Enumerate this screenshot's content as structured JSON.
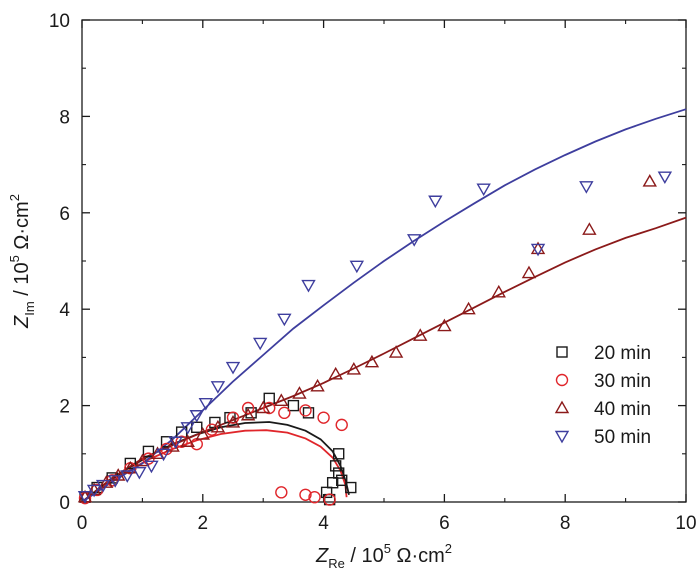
{
  "chart_data": {
    "type": "scatter",
    "xlim": [
      0,
      10
    ],
    "ylim": [
      0,
      10
    ],
    "xticks": [
      0,
      2,
      4,
      6,
      8,
      10
    ],
    "yticks": [
      0,
      2,
      4,
      6,
      8,
      10
    ],
    "xlabel": {
      "symbol": "Z",
      "subscript": "Re",
      "unit": " / 10",
      "exponent": "5",
      "unit_tail": " Ω·cm",
      "unit_exp": "2"
    },
    "ylabel": {
      "symbol": "Z",
      "subscript": "Im",
      "unit": " / 10",
      "exponent": "5",
      "unit_tail": " Ω·cm",
      "unit_exp": "2"
    },
    "legend_position": "lower-right",
    "series": [
      {
        "name": "20 min",
        "marker": "square",
        "color": "#1a1a1a",
        "points": [
          [
            0.05,
            0.1
          ],
          [
            0.25,
            0.3
          ],
          [
            0.5,
            0.5
          ],
          [
            0.8,
            0.8
          ],
          [
            1.1,
            1.05
          ],
          [
            1.4,
            1.25
          ],
          [
            1.65,
            1.45
          ],
          [
            1.9,
            1.55
          ],
          [
            2.2,
            1.65
          ],
          [
            2.45,
            1.75
          ],
          [
            2.8,
            1.85
          ],
          [
            3.1,
            2.15
          ],
          [
            3.5,
            2.0
          ],
          [
            3.75,
            1.85
          ],
          [
            4.25,
            1.0
          ],
          [
            4.2,
            0.75
          ],
          [
            4.25,
            0.6
          ],
          [
            4.3,
            0.45
          ],
          [
            4.45,
            0.3
          ],
          [
            4.15,
            0.4
          ],
          [
            4.05,
            0.2
          ],
          [
            4.1,
            0.05
          ]
        ],
        "fit": [
          [
            0,
            0
          ],
          [
            0.3,
            0.3
          ],
          [
            0.7,
            0.65
          ],
          [
            1.1,
            0.95
          ],
          [
            1.5,
            1.2
          ],
          [
            1.9,
            1.4
          ],
          [
            2.3,
            1.55
          ],
          [
            2.7,
            1.64
          ],
          [
            3.1,
            1.66
          ],
          [
            3.4,
            1.6
          ],
          [
            3.7,
            1.48
          ],
          [
            3.95,
            1.3
          ],
          [
            4.15,
            1.05
          ],
          [
            4.28,
            0.75
          ],
          [
            4.37,
            0.42
          ],
          [
            4.42,
            0.15
          ]
        ]
      },
      {
        "name": "30 min",
        "marker": "circle",
        "color": "#e0262b",
        "points": [
          [
            0.05,
            0.08
          ],
          [
            0.25,
            0.25
          ],
          [
            0.5,
            0.45
          ],
          [
            0.8,
            0.7
          ],
          [
            1.1,
            0.9
          ],
          [
            1.4,
            1.1
          ],
          [
            1.65,
            1.25
          ],
          [
            1.9,
            1.2
          ],
          [
            2.15,
            1.5
          ],
          [
            2.5,
            1.75
          ],
          [
            2.75,
            1.95
          ],
          [
            3.1,
            1.95
          ],
          [
            3.35,
            1.85
          ],
          [
            3.7,
            1.9
          ],
          [
            4.0,
            1.75
          ],
          [
            4.3,
            1.6
          ],
          [
            3.3,
            0.2
          ],
          [
            3.7,
            0.15
          ],
          [
            3.85,
            0.1
          ],
          [
            4.1,
            0.05
          ]
        ],
        "fit": [
          [
            0,
            0
          ],
          [
            0.3,
            0.27
          ],
          [
            0.7,
            0.6
          ],
          [
            1.1,
            0.88
          ],
          [
            1.5,
            1.1
          ],
          [
            1.9,
            1.28
          ],
          [
            2.3,
            1.41
          ],
          [
            2.7,
            1.48
          ],
          [
            3.05,
            1.49
          ],
          [
            3.4,
            1.44
          ],
          [
            3.7,
            1.32
          ],
          [
            3.95,
            1.15
          ],
          [
            4.15,
            0.92
          ],
          [
            4.28,
            0.65
          ],
          [
            4.36,
            0.36
          ],
          [
            4.38,
            0.1
          ]
        ]
      },
      {
        "name": "40 min",
        "marker": "triangle-up",
        "color": "#8b1a1a",
        "points": [
          [
            0.05,
            0.1
          ],
          [
            0.2,
            0.25
          ],
          [
            0.4,
            0.4
          ],
          [
            0.6,
            0.55
          ],
          [
            0.8,
            0.7
          ],
          [
            1.0,
            0.85
          ],
          [
            1.25,
            1.0
          ],
          [
            1.5,
            1.15
          ],
          [
            1.75,
            1.25
          ],
          [
            2.0,
            1.4
          ],
          [
            2.25,
            1.55
          ],
          [
            2.5,
            1.65
          ],
          [
            2.75,
            1.8
          ],
          [
            3.0,
            1.95
          ],
          [
            3.3,
            2.1
          ],
          [
            3.6,
            2.25
          ],
          [
            3.9,
            2.4
          ],
          [
            4.2,
            2.65
          ],
          [
            4.5,
            2.75
          ],
          [
            4.8,
            2.9
          ],
          [
            5.2,
            3.1
          ],
          [
            5.6,
            3.45
          ],
          [
            6.0,
            3.65
          ],
          [
            6.4,
            4.0
          ],
          [
            6.9,
            4.35
          ],
          [
            7.4,
            4.75
          ],
          [
            7.55,
            5.25
          ],
          [
            8.4,
            5.65
          ],
          [
            9.4,
            6.65
          ]
        ],
        "fit": [
          [
            0,
            0
          ],
          [
            0.5,
            0.5
          ],
          [
            1.0,
            0.9
          ],
          [
            1.5,
            1.18
          ],
          [
            2.0,
            1.45
          ],
          [
            2.5,
            1.7
          ],
          [
            3.0,
            1.95
          ],
          [
            3.5,
            2.2
          ],
          [
            4.0,
            2.47
          ],
          [
            4.5,
            2.77
          ],
          [
            5.0,
            3.08
          ],
          [
            5.5,
            3.4
          ],
          [
            6.0,
            3.72
          ],
          [
            6.5,
            4.04
          ],
          [
            7.0,
            4.36
          ],
          [
            7.5,
            4.67
          ],
          [
            8.0,
            4.97
          ],
          [
            8.5,
            5.24
          ],
          [
            9.0,
            5.48
          ],
          [
            9.5,
            5.68
          ],
          [
            10.0,
            5.9
          ]
        ]
      },
      {
        "name": "50 min",
        "marker": "triangle-down",
        "color": "#3e3e9e",
        "points": [
          [
            0.05,
            0.12
          ],
          [
            0.2,
            0.25
          ],
          [
            0.35,
            0.35
          ],
          [
            0.55,
            0.45
          ],
          [
            0.75,
            0.55
          ],
          [
            0.95,
            0.62
          ],
          [
            1.15,
            0.75
          ],
          [
            1.35,
            1.0
          ],
          [
            1.55,
            1.25
          ],
          [
            1.75,
            1.55
          ],
          [
            1.9,
            1.8
          ],
          [
            2.05,
            2.05
          ],
          [
            2.25,
            2.4
          ],
          [
            2.5,
            2.8
          ],
          [
            2.95,
            3.3
          ],
          [
            3.35,
            3.8
          ],
          [
            3.75,
            4.5
          ],
          [
            4.55,
            4.9
          ],
          [
            5.5,
            5.45
          ],
          [
            5.85,
            6.25
          ],
          [
            6.65,
            6.5
          ],
          [
            7.55,
            5.25
          ],
          [
            8.35,
            6.55
          ],
          [
            9.65,
            6.75
          ]
        ],
        "fit": [
          [
            0,
            0
          ],
          [
            0.5,
            0.42
          ],
          [
            1.0,
            0.8
          ],
          [
            1.5,
            1.3
          ],
          [
            2.0,
            1.9
          ],
          [
            2.5,
            2.5
          ],
          [
            3.0,
            3.05
          ],
          [
            3.5,
            3.6
          ],
          [
            4.0,
            4.08
          ],
          [
            4.5,
            4.55
          ],
          [
            5.0,
            5.0
          ],
          [
            5.5,
            5.42
          ],
          [
            6.0,
            5.82
          ],
          [
            6.5,
            6.2
          ],
          [
            7.0,
            6.57
          ],
          [
            7.5,
            6.9
          ],
          [
            8.0,
            7.2
          ],
          [
            8.5,
            7.48
          ],
          [
            9.0,
            7.73
          ],
          [
            9.5,
            7.95
          ],
          [
            10.0,
            8.15
          ]
        ]
      }
    ]
  }
}
